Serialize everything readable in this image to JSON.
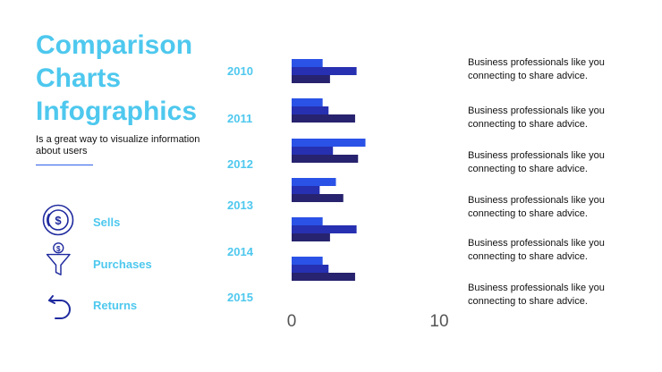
{
  "header": {
    "title": "Comparison Charts Infographics",
    "subtitle": "Is a great way to visualize information about users"
  },
  "legend": [
    {
      "label": "Sells",
      "icon": "coin-circle-icon"
    },
    {
      "label": "Purchases",
      "icon": "coin-funnel-icon"
    },
    {
      "label": "Returns",
      "icon": "return-arrow-icon"
    }
  ],
  "descriptions": [
    "Business professionals like you connecting to share advice.",
    "Business professionals like you connecting to share advice.",
    "Business professionals like you connecting to share advice.",
    "Business professionals like you connecting to share advice.",
    "Business professionals like you connecting to share advice.",
    "Business professionals like you connecting to share advice."
  ],
  "colors": {
    "accent": "#4ec8ee",
    "icon": "#1f2a9e",
    "series": [
      "#2a52e6",
      "#2630b0",
      "#27236e"
    ]
  },
  "chart_data": {
    "type": "bar",
    "orientation": "horizontal",
    "categories": [
      "2010",
      "2011",
      "2012",
      "2013",
      "2014",
      "2015"
    ],
    "series": [
      {
        "name": "Sells",
        "values": [
          2.1,
          2.1,
          5.0,
          3.0,
          2.1,
          2.1
        ]
      },
      {
        "name": "Purchases",
        "values": [
          4.4,
          2.5,
          2.8,
          1.9,
          4.4,
          2.5
        ]
      },
      {
        "name": "Returns",
        "values": [
          2.6,
          4.3,
          4.5,
          3.5,
          2.6,
          4.3
        ]
      }
    ],
    "xlim": [
      0,
      10
    ],
    "xticks": [
      "0",
      "10"
    ],
    "grid": false
  }
}
